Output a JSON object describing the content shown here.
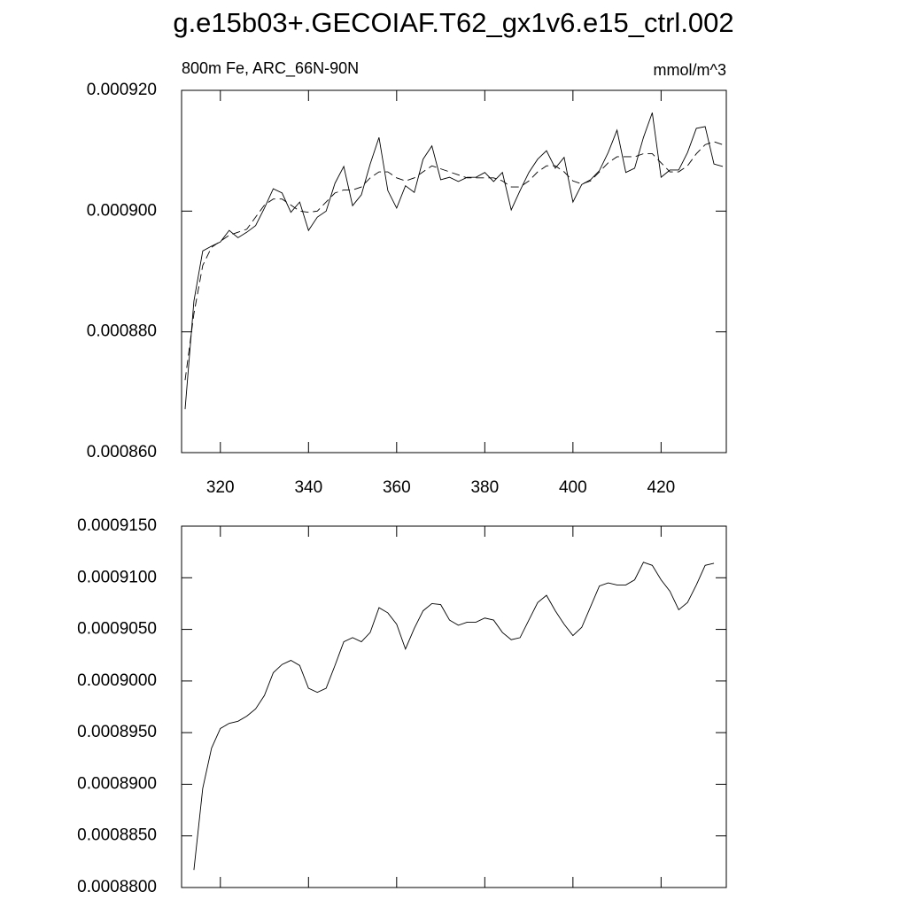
{
  "title": "g.e15b03+.GECOIAF.T62_gx1v6.e15_ctrl.002",
  "chart_data": [
    {
      "type": "line",
      "left_string": "800m Fe, ARC_66N-90N",
      "right_string": "mmol/m^3",
      "x": [
        312,
        314,
        316,
        318,
        320,
        322,
        324,
        326,
        328,
        330,
        332,
        334,
        336,
        338,
        340,
        342,
        344,
        346,
        348,
        350,
        352,
        354,
        356,
        358,
        360,
        362,
        364,
        366,
        368,
        370,
        372,
        374,
        376,
        378,
        380,
        382,
        384,
        386,
        388,
        390,
        392,
        394,
        396,
        398,
        400,
        402,
        404,
        406,
        408,
        410,
        412,
        414,
        416,
        418,
        420,
        422,
        424,
        426,
        428,
        430,
        432,
        434
      ],
      "series": [
        {
          "color": "#000000",
          "dashed": false,
          "values": [
            0.0008672,
            0.0008851,
            0.0008934,
            0.0008942,
            0.0008949,
            0.0008968,
            0.0008956,
            0.0008965,
            0.0008976,
            0.0009005,
            0.0009037,
            0.000903,
            0.0008998,
            0.0009015,
            0.0008968,
            0.000899,
            0.0009,
            0.0009046,
            0.0009074,
            0.0009009,
            0.0009027,
            0.0009078,
            0.0009122,
            0.0009034,
            0.0009005,
            0.0009042,
            0.0009031,
            0.0009086,
            0.0009108,
            0.0009052,
            0.0009056,
            0.0009049,
            0.0009056,
            0.0009056,
            0.0009064,
            0.0009049,
            0.0009064,
            0.0009002,
            0.0009034,
            0.0009064,
            0.0009086,
            0.00091,
            0.0009071,
            0.0009089,
            0.0009015,
            0.0009044,
            0.0009052,
            0.0009067,
            0.0009097,
            0.0009134,
            0.0009064,
            0.0009071,
            0.0009122,
            0.0009163,
            0.0009056,
            0.0009068,
            0.0009068,
            0.0009097,
            0.0009137,
            0.000914,
            0.0009078,
            0.0009074
          ]
        },
        {
          "color": "#000000",
          "dashed": true,
          "values": [
            0.000872,
            0.000883,
            0.000891,
            0.000894,
            0.000895,
            0.000896,
            0.0008965,
            0.000897,
            0.000899,
            0.000901,
            0.000902,
            0.000902,
            0.000901,
            0.0009,
            0.0008998,
            0.0009,
            0.0009015,
            0.000903,
            0.0009035,
            0.0009035,
            0.000904,
            0.0009055,
            0.0009065,
            0.0009065,
            0.0009055,
            0.000905,
            0.0009055,
            0.0009065,
            0.0009075,
            0.000907,
            0.0009065,
            0.000906,
            0.0009055,
            0.0009055,
            0.0009055,
            0.0009055,
            0.000905,
            0.000904,
            0.000904,
            0.000905,
            0.0009065,
            0.0009075,
            0.0009075,
            0.0009065,
            0.000905,
            0.0009045,
            0.000905,
            0.0009065,
            0.000908,
            0.000909,
            0.000909,
            0.000909,
            0.0009095,
            0.0009095,
            0.000908,
            0.0009065,
            0.0009065,
            0.0009075,
            0.0009095,
            0.000911,
            0.0009115,
            0.000911
          ]
        }
      ],
      "xlim": [
        311.2,
        434.8
      ],
      "xticks": [
        320,
        340,
        360,
        380,
        400,
        420
      ],
      "ylim": [
        0.00086,
        0.00092
      ],
      "yticks": [
        {
          "value": 0.00086,
          "label": "0.000860"
        },
        {
          "value": 0.00088,
          "label": "0.000880"
        },
        {
          "value": 0.0009,
          "label": "0.000900"
        },
        {
          "value": 0.00092,
          "label": "0.000920"
        }
      ]
    },
    {
      "type": "line",
      "x": [
        314,
        316,
        318,
        320,
        322,
        324,
        326,
        328,
        330,
        332,
        334,
        336,
        338,
        340,
        342,
        344,
        346,
        348,
        350,
        352,
        354,
        356,
        358,
        360,
        362,
        364,
        366,
        368,
        370,
        372,
        374,
        376,
        378,
        380,
        382,
        384,
        386,
        388,
        390,
        392,
        394,
        396,
        398,
        400,
        402,
        404,
        406,
        408,
        410,
        412,
        414,
        416,
        418,
        420,
        422,
        424,
        426,
        428,
        430,
        432
      ],
      "series": [
        {
          "color": "#000000",
          "dashed": false,
          "values": [
            0.0008817,
            0.0008896,
            0.0008935,
            0.0008954,
            0.0008959,
            0.0008961,
            0.0008966,
            0.0008973,
            0.0008986,
            0.0009008,
            0.0009016,
            0.000902,
            0.0009015,
            0.0008993,
            0.0008989,
            0.0008993,
            0.0009015,
            0.0009038,
            0.0009042,
            0.0009038,
            0.0009047,
            0.0009071,
            0.0009066,
            0.0009055,
            0.0009031,
            0.0009051,
            0.0009068,
            0.0009075,
            0.0009074,
            0.0009059,
            0.0009054,
            0.0009057,
            0.0009057,
            0.0009061,
            0.0009059,
            0.0009047,
            0.000904,
            0.0009042,
            0.0009059,
            0.0009076,
            0.0009083,
            0.0009068,
            0.0009055,
            0.0009044,
            0.0009052,
            0.0009072,
            0.0009092,
            0.0009095,
            0.0009093,
            0.0009093,
            0.0009098,
            0.0009115,
            0.0009112,
            0.0009098,
            0.0009087,
            0.0009069,
            0.0009076,
            0.0009093,
            0.0009112,
            0.0009114
          ]
        }
      ],
      "xlim": [
        311.2,
        434.8
      ],
      "ylim": [
        0.00088,
        0.000915
      ],
      "yticks": [
        {
          "value": 0.00088,
          "label": "0.0008800"
        },
        {
          "value": 0.000885,
          "label": "0.0008850"
        },
        {
          "value": 0.00089,
          "label": "0.0008900"
        },
        {
          "value": 0.000895,
          "label": "0.0008950"
        },
        {
          "value": 0.0009,
          "label": "0.0009000"
        },
        {
          "value": 0.000905,
          "label": "0.0009050"
        },
        {
          "value": 0.00091,
          "label": "0.0009100"
        },
        {
          "value": 0.000915,
          "label": "0.0009150"
        }
      ]
    }
  ]
}
